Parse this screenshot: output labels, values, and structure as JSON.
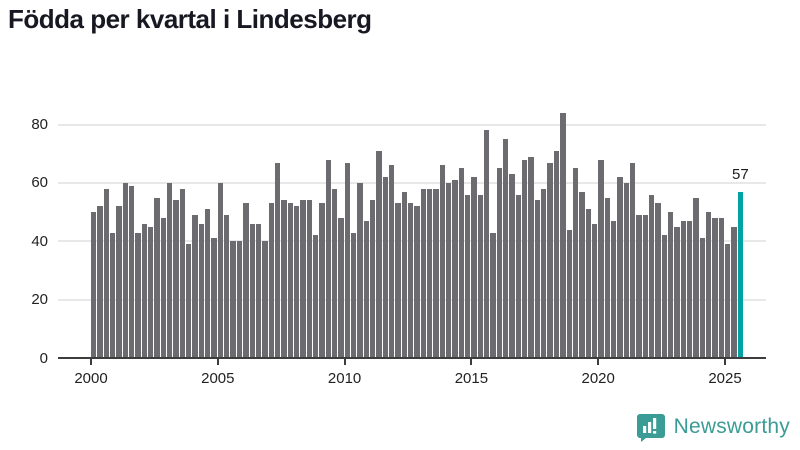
{
  "title": "Födda per kvartal i Lindesberg",
  "annotation": {
    "last_value_label": "57"
  },
  "branding": {
    "name": "Newsworthy",
    "color": "#3b9c95"
  },
  "colors": {
    "bar": "#6b6b70",
    "highlight": "#00a2a2",
    "gridline": "#e8e8e8",
    "axis": "#3d3d3d",
    "text": "#222222",
    "title": "#181822"
  },
  "chart_data": {
    "type": "bar",
    "title": "Födda per kvartal i Lindesberg",
    "x_start": "2000 Q1",
    "x_end": "2025 Q3",
    "x_frequency": "quarterly",
    "x_tick_labels": [
      "2000",
      "2005",
      "2010",
      "2015",
      "2020",
      "2025"
    ],
    "y_ticks": [
      0,
      20,
      40,
      60,
      80
    ],
    "ylim": [
      0,
      88
    ],
    "grid": "horizontal",
    "legend": "none",
    "highlight_last_bar": true,
    "last_bar_value": 57,
    "values": [
      50,
      52,
      58,
      43,
      52,
      60,
      59,
      43,
      46,
      45,
      55,
      48,
      60,
      54,
      58,
      39,
      49,
      46,
      51,
      41,
      60,
      49,
      40,
      40,
      53,
      46,
      46,
      40,
      53,
      67,
      54,
      53,
      52,
      54,
      54,
      42,
      53,
      68,
      58,
      48,
      67,
      43,
      60,
      47,
      54,
      71,
      62,
      66,
      53,
      57,
      53,
      52,
      58,
      58,
      58,
      66,
      60,
      61,
      65,
      56,
      62,
      56,
      78,
      43,
      65,
      75,
      63,
      56,
      68,
      69,
      54,
      58,
      67,
      71,
      84,
      44,
      65,
      57,
      51,
      46,
      68,
      55,
      47,
      62,
      60,
      67,
      49,
      49,
      56,
      53,
      42,
      50,
      45,
      47,
      47,
      55,
      41,
      50,
      48,
      48,
      39,
      45,
      57
    ]
  }
}
